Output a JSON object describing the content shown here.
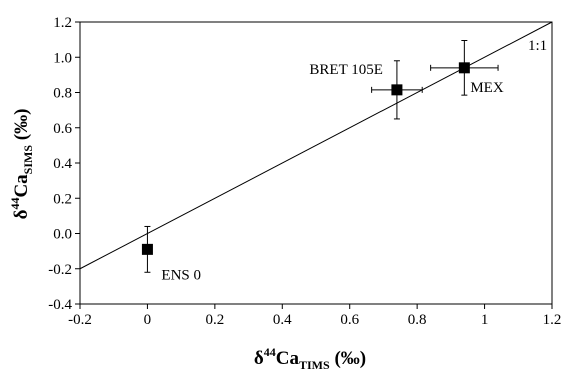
{
  "chart_data": {
    "type": "scatter",
    "title": "",
    "xlabel": {
      "prefix": "δ",
      "sup": "44",
      "base": "Ca",
      "sub": "TIMS",
      "suffix": " (‰)"
    },
    "ylabel": {
      "prefix": "δ",
      "sup": "44",
      "base": "Ca",
      "sub": "SIMS",
      "suffix": " (‰)"
    },
    "xlim": [
      -0.2,
      1.2
    ],
    "ylim": [
      -0.4,
      1.2
    ],
    "xticks": [
      "-0.2",
      "0",
      "0.2",
      "0.4",
      "0.6",
      "0.8",
      "1",
      "1.2"
    ],
    "yticks": [
      "-0.4",
      "-0.2",
      "0.0",
      "0.2",
      "0.4",
      "0.6",
      "0.8",
      "1.0",
      "1.2"
    ],
    "grid": false,
    "points": [
      {
        "label": "ENS 0",
        "x": 0.0,
        "y": -0.09,
        "xerr": 0.0,
        "yerr": 0.13
      },
      {
        "label": "BRET 105E",
        "x": 0.74,
        "y": 0.815,
        "xerr": 0.075,
        "yerr": 0.165
      },
      {
        "label": "MEX",
        "x": 0.94,
        "y": 0.94,
        "xerr": 0.1,
        "yerr": 0.155
      }
    ],
    "reference_line": {
      "label": "1:1",
      "from": [
        -0.2,
        -0.2
      ],
      "to": [
        1.2,
        1.2
      ]
    }
  }
}
